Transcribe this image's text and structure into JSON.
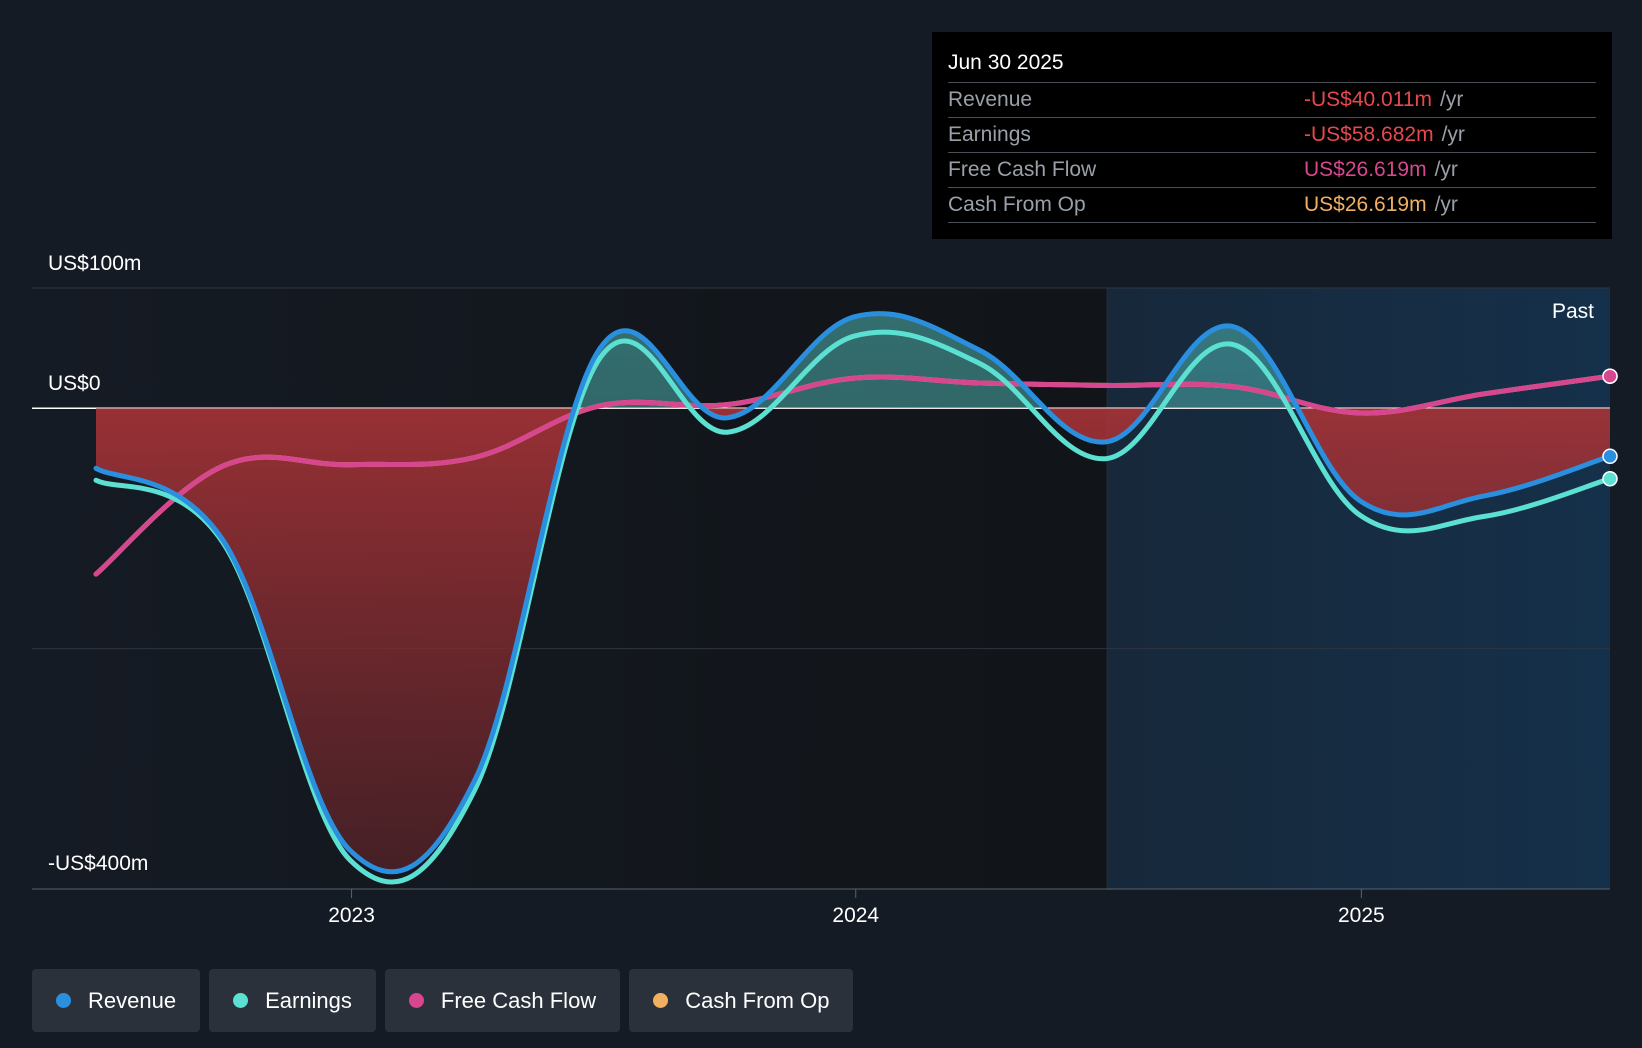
{
  "tooltip": {
    "date": "Jun 30 2025",
    "rows": [
      {
        "label": "Revenue",
        "value": "-US$40.011m",
        "unit": "/yr",
        "color": "#e5484d"
      },
      {
        "label": "Earnings",
        "value": "-US$58.682m",
        "unit": "/yr",
        "color": "#e5484d"
      },
      {
        "label": "Free Cash Flow",
        "value": "US$26.619m",
        "unit": "/yr",
        "color": "#d6478f"
      },
      {
        "label": "Cash From Op",
        "value": "US$26.619m",
        "unit": "/yr",
        "color": "#f0b062"
      }
    ]
  },
  "past_label": "Past",
  "legend": [
    {
      "label": "Revenue",
      "color": "#2b8fe0"
    },
    {
      "label": "Earnings",
      "color": "#5ce0d2"
    },
    {
      "label": "Free Cash Flow",
      "color": "#d6478f"
    },
    {
      "label": "Cash From Op",
      "color": "#f0b062"
    }
  ],
  "chart_data": {
    "type": "area",
    "y_tick_labels": {
      "top": "US$100m",
      "zero": "US$0",
      "bottom": "-US$400m"
    },
    "ylim": [
      -400,
      100
    ],
    "xlim": [
      "2022-06-30",
      "2025-06-30"
    ],
    "x_tick_labels": [
      "2023",
      "2024",
      "2025"
    ],
    "x_ticks": [
      "2023-01-01",
      "2024-01-01",
      "2025-01-01"
    ],
    "forecast_start": "2024-07-01",
    "gridlines": [
      100,
      0,
      -200,
      -400
    ],
    "series": [
      {
        "name": "Revenue",
        "color": "#2b8fe0",
        "points": [
          [
            "2022-06-30",
            -50
          ],
          [
            "2022-09-30",
            -110
          ],
          [
            "2022-12-31",
            -368
          ],
          [
            "2023-03-31",
            -310
          ],
          [
            "2023-06-30",
            50
          ],
          [
            "2023-09-30",
            -8
          ],
          [
            "2023-12-31",
            76
          ],
          [
            "2024-03-31",
            48
          ],
          [
            "2024-06-30",
            -28
          ],
          [
            "2024-09-30",
            68
          ],
          [
            "2024-12-31",
            -77
          ],
          [
            "2025-03-31",
            -73
          ],
          [
            "2025-06-30",
            -40.011
          ]
        ]
      },
      {
        "name": "Earnings",
        "color": "#5ce0d2",
        "points": [
          [
            "2022-06-30",
            -60
          ],
          [
            "2022-09-30",
            -112
          ],
          [
            "2022-12-31",
            -376
          ],
          [
            "2023-03-31",
            -318
          ],
          [
            "2023-06-30",
            42
          ],
          [
            "2023-09-30",
            -20
          ],
          [
            "2023-12-31",
            60
          ],
          [
            "2024-03-31",
            37
          ],
          [
            "2024-06-30",
            -42
          ],
          [
            "2024-09-30",
            53
          ],
          [
            "2024-12-31",
            -89
          ],
          [
            "2025-03-31",
            -90
          ],
          [
            "2025-06-30",
            -58.682
          ]
        ]
      },
      {
        "name": "Free Cash Flow",
        "color": "#d6478f",
        "points": [
          [
            "2022-06-30",
            -138
          ],
          [
            "2022-09-30",
            -48
          ],
          [
            "2022-12-31",
            -47
          ],
          [
            "2023-03-31",
            -41
          ],
          [
            "2023-06-30",
            2
          ],
          [
            "2023-09-30",
            3
          ],
          [
            "2023-12-31",
            25
          ],
          [
            "2024-03-31",
            21
          ],
          [
            "2024-06-30",
            19
          ],
          [
            "2024-09-30",
            18
          ],
          [
            "2024-12-31",
            -4
          ],
          [
            "2025-03-31",
            12
          ],
          [
            "2025-06-30",
            26.619
          ]
        ]
      },
      {
        "name": "Cash From Op",
        "color": "#f0b062",
        "points": [
          [
            "2022-06-30",
            -138
          ],
          [
            "2022-09-30",
            -48
          ],
          [
            "2022-12-31",
            -47
          ],
          [
            "2023-03-31",
            -41
          ],
          [
            "2023-06-30",
            2
          ],
          [
            "2023-09-30",
            3
          ],
          [
            "2023-12-31",
            25
          ],
          [
            "2024-03-31",
            21
          ],
          [
            "2024-06-30",
            19
          ],
          [
            "2024-09-30",
            18
          ],
          [
            "2024-12-31",
            -4
          ],
          [
            "2025-03-31",
            12
          ],
          [
            "2025-06-30",
            26.619
          ]
        ]
      }
    ]
  }
}
